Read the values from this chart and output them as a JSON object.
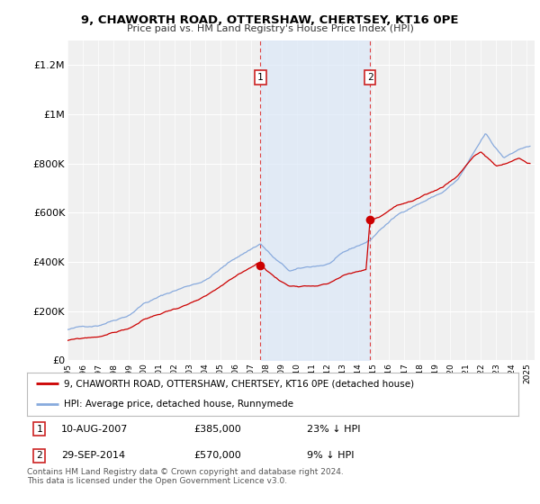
{
  "title": "9, CHAWORTH ROAD, OTTERSHAW, CHERTSEY, KT16 0PE",
  "subtitle": "Price paid vs. HM Land Registry's House Price Index (HPI)",
  "ylabel_ticks": [
    "£0",
    "£200K",
    "£400K",
    "£600K",
    "£800K",
    "£1M",
    "£1.2M"
  ],
  "ytick_values": [
    0,
    200000,
    400000,
    600000,
    800000,
    1000000,
    1200000
  ],
  "ylim": [
    0,
    1300000
  ],
  "xlim_start": 1995.0,
  "xlim_end": 2025.5,
  "purchase1_x": 2007.6,
  "purchase1_y": 385000,
  "purchase1_label": "1",
  "purchase1_date": "10-AUG-2007",
  "purchase1_price": "£385,000",
  "purchase1_hpi": "23% ↓ HPI",
  "purchase2_x": 2014.75,
  "purchase2_y": 570000,
  "purchase2_label": "2",
  "purchase2_date": "29-SEP-2014",
  "purchase2_price": "£570,000",
  "purchase2_hpi": "9% ↓ HPI",
  "shade_color": "#dce8f8",
  "line_color_red": "#cc0000",
  "line_color_blue": "#88aadd",
  "legend_line1": "9, CHAWORTH ROAD, OTTERSHAW, CHERTSEY, KT16 0PE (detached house)",
  "legend_line2": "HPI: Average price, detached house, Runnymede",
  "footnote": "Contains HM Land Registry data © Crown copyright and database right 2024.\nThis data is licensed under the Open Government Licence v3.0.",
  "background_color": "#f0f0f0",
  "grid_color": "#ffffff"
}
